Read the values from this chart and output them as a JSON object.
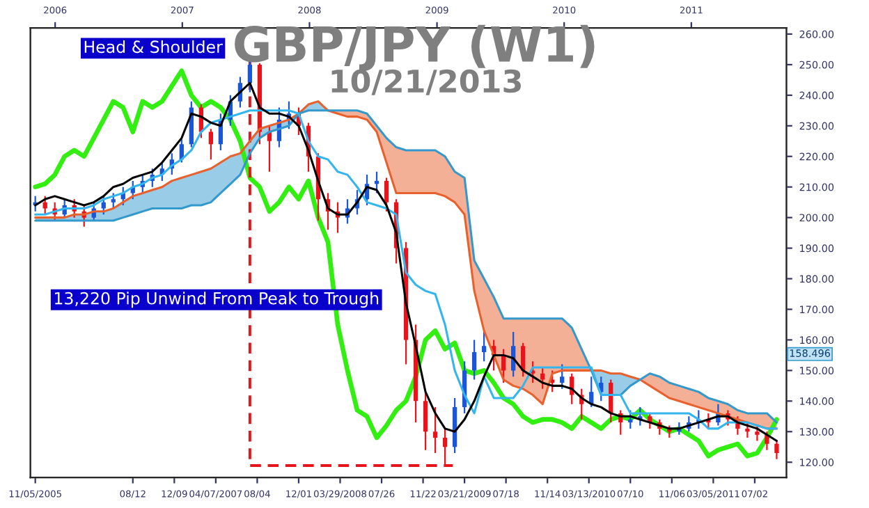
{
  "chart_data": {
    "type": "candlestick",
    "title": "GBP/JPY (W1)",
    "subtitle": "10/21/2013",
    "x": [
      "2005-11-05",
      "2005-12-03",
      "2005-12-31",
      "2006-01-28",
      "2006-02-25",
      "2006-03-25",
      "2006-04-22",
      "2006-05-20",
      "2006-06-17",
      "2006-07-15",
      "2006-08-12",
      "2006-09-09",
      "2006-10-07",
      "2006-11-04",
      "2006-12-02",
      "2006-12-30",
      "2007-01-27",
      "2007-02-24",
      "2007-03-24",
      "2007-04-21",
      "2007-05-19",
      "2007-06-16",
      "2007-07-14",
      "2007-08-11",
      "2007-09-08",
      "2007-10-06",
      "2007-11-03",
      "2007-12-01",
      "2007-12-29",
      "2008-01-26",
      "2008-02-23",
      "2008-03-22",
      "2008-04-19",
      "2008-05-17",
      "2008-06-14",
      "2008-07-12",
      "2008-08-09",
      "2008-09-06",
      "2008-10-04",
      "2008-11-01",
      "2008-11-29",
      "2008-12-27",
      "2009-01-24",
      "2009-02-21",
      "2009-03-21",
      "2009-04-18",
      "2009-05-16",
      "2009-06-13",
      "2009-07-11",
      "2009-08-08",
      "2009-09-05",
      "2009-10-03",
      "2009-10-31",
      "2009-11-28",
      "2009-12-26",
      "2010-01-23",
      "2010-02-20",
      "2010-03-20",
      "2010-04-17",
      "2010-05-15",
      "2010-06-12",
      "2010-07-10",
      "2010-08-07",
      "2010-09-04",
      "2010-10-02",
      "2010-10-30",
      "2010-11-27",
      "2010-12-25",
      "2011-01-22",
      "2011-02-19",
      "2011-03-19",
      "2011-04-16",
      "2011-05-14",
      "2011-06-11",
      "2011-07-09",
      "2011-08-06",
      "2011-09-03"
    ],
    "ohlc": [
      [
        204,
        207,
        202,
        205
      ],
      [
        205,
        207,
        201,
        203
      ],
      [
        203,
        205,
        199,
        201
      ],
      [
        201,
        206,
        200,
        204
      ],
      [
        204,
        206,
        200,
        202
      ],
      [
        202,
        204,
        197,
        200
      ],
      [
        200,
        205,
        199,
        203
      ],
      [
        203,
        207,
        201,
        205
      ],
      [
        205,
        208,
        203,
        206
      ],
      [
        206,
        210,
        204,
        208
      ],
      [
        208,
        212,
        206,
        210
      ],
      [
        210,
        214,
        208,
        212
      ],
      [
        212,
        216,
        210,
        214
      ],
      [
        214,
        218,
        212,
        216
      ],
      [
        216,
        221,
        214,
        219
      ],
      [
        219,
        226,
        218,
        224
      ],
      [
        224,
        238,
        223,
        236
      ],
      [
        236,
        237,
        226,
        228
      ],
      [
        228,
        229,
        219,
        224
      ],
      [
        224,
        234,
        222,
        232
      ],
      [
        232,
        240,
        230,
        238
      ],
      [
        238,
        246,
        236,
        244
      ],
      [
        244,
        251.1,
        241,
        250
      ],
      [
        250,
        250.5,
        224,
        228
      ],
      [
        228,
        230,
        215,
        225
      ],
      [
        225,
        236,
        223,
        232
      ],
      [
        232,
        238,
        229,
        234
      ],
      [
        234,
        236,
        227,
        230
      ],
      [
        230,
        231,
        215,
        220
      ],
      [
        220,
        221,
        199,
        206
      ],
      [
        206,
        208,
        196,
        202
      ],
      [
        202,
        205,
        195,
        200
      ],
      [
        200,
        206,
        198,
        203
      ],
      [
        203,
        209,
        201,
        206
      ],
      [
        206,
        214,
        204,
        211
      ],
      [
        211,
        215,
        208,
        212
      ],
      [
        212,
        213,
        202,
        205
      ],
      [
        205,
        206,
        185,
        190
      ],
      [
        190,
        192,
        152,
        160
      ],
      [
        160,
        165,
        133,
        140
      ],
      [
        140,
        143,
        124,
        130
      ],
      [
        130,
        138,
        123,
        128
      ],
      [
        128,
        131,
        118.9,
        125
      ],
      [
        125,
        141,
        123,
        138
      ],
      [
        138,
        153,
        136,
        150
      ],
      [
        150,
        160,
        147,
        156
      ],
      [
        156,
        163,
        153,
        158
      ],
      [
        158,
        160,
        150,
        155
      ],
      [
        155,
        157,
        146,
        150
      ],
      [
        150,
        162.6,
        148,
        158
      ],
      [
        158,
        159,
        148,
        150
      ],
      [
        150,
        153,
        146,
        149
      ],
      [
        149,
        151,
        144,
        147
      ],
      [
        147,
        150,
        143,
        146
      ],
      [
        146,
        152,
        144,
        148
      ],
      [
        148,
        149,
        139,
        142
      ],
      [
        142,
        144,
        134,
        139
      ],
      [
        139,
        148,
        138,
        143
      ],
      [
        143,
        148,
        140,
        146
      ],
      [
        146,
        147,
        133,
        136
      ],
      [
        136,
        137,
        129,
        133
      ],
      [
        133,
        137,
        131,
        134
      ],
      [
        134,
        138,
        132,
        135
      ],
      [
        135,
        136,
        131,
        133
      ],
      [
        133,
        134,
        129,
        131
      ],
      [
        131,
        132,
        128,
        130
      ],
      [
        130,
        133,
        129,
        131
      ],
      [
        131,
        135,
        130,
        133
      ],
      [
        133,
        137,
        131,
        134
      ],
      [
        134,
        136,
        131,
        133
      ],
      [
        133,
        139,
        132,
        136
      ],
      [
        136,
        137,
        132,
        134
      ],
      [
        134,
        135,
        129,
        131
      ],
      [
        131,
        133,
        128,
        130
      ],
      [
        130,
        132,
        127,
        129
      ],
      [
        129,
        130,
        124,
        126
      ],
      [
        126,
        127,
        121,
        123
      ]
    ],
    "colors": [
      "#1a56d6",
      "#e8141c",
      "#e8141c",
      "#1a56d6",
      "#e8141c",
      "#e8141c",
      "#1a56d6",
      "#1a56d6",
      "#1a56d6",
      "#1a56d6",
      "#1a56d6",
      "#1a56d6",
      "#1a56d6",
      "#1a56d6",
      "#1a56d6",
      "#1a56d6",
      "#1a56d6",
      "#e8141c",
      "#e8141c",
      "#1a56d6",
      "#1a56d6",
      "#1a56d6",
      "#1a56d6",
      "#e8141c",
      "#e8141c",
      "#1a56d6",
      "#1a56d6",
      "#e8141c",
      "#e8141c",
      "#e8141c",
      "#e8141c",
      "#e8141c",
      "#1a56d6",
      "#1a56d6",
      "#1a56d6",
      "#1a56d6",
      "#e8141c",
      "#e8141c",
      "#e8141c",
      "#e8141c",
      "#e8141c",
      "#e8141c",
      "#e8141c",
      "#1a56d6",
      "#1a56d6",
      "#1a56d6",
      "#1a56d6",
      "#e8141c",
      "#e8141c",
      "#1a56d6",
      "#e8141c",
      "#e8141c",
      "#e8141c",
      "#e8141c",
      "#1a56d6",
      "#e8141c",
      "#e8141c",
      "#1a56d6",
      "#1a56d6",
      "#e8141c",
      "#e8141c",
      "#1a56d6",
      "#1a56d6",
      "#e8141c",
      "#e8141c",
      "#e8141c",
      "#1a56d6",
      "#1a56d6",
      "#1a56d6",
      "#e8141c",
      "#1a56d6",
      "#e8141c",
      "#e8141c",
      "#e8141c",
      "#e8141c",
      "#e8141c",
      "#e8141c"
    ],
    "series": [
      {
        "type": "line",
        "color": "#e8602c",
        "values": [
          200,
          200,
          200,
          200,
          201,
          201,
          202,
          202,
          203,
          205,
          207,
          208,
          209,
          210,
          212,
          213,
          214,
          215,
          216,
          218,
          220,
          221,
          225,
          229,
          230,
          231,
          232,
          234,
          237,
          238,
          235,
          234,
          233,
          233,
          232,
          228,
          218,
          208,
          208,
          208,
          208,
          208,
          207,
          205,
          201,
          176,
          163,
          155,
          147,
          145,
          144,
          142,
          139,
          149,
          150,
          150,
          150,
          150,
          150,
          149,
          149,
          148,
          147,
          145,
          143,
          141,
          140,
          139,
          138,
          137,
          136,
          135,
          134,
          133,
          132,
          131,
          131
        ],
        "lower": [
          null,
          null,
          null,
          null,
          null,
          null,
          null,
          null,
          null,
          null,
          null,
          null,
          null,
          null,
          null,
          null,
          null,
          null,
          null,
          null,
          null,
          null,
          null,
          null,
          null,
          null,
          null,
          null,
          null,
          null,
          235,
          234,
          233,
          233,
          232,
          228,
          218,
          208,
          208,
          208,
          208,
          208,
          207,
          205,
          201,
          176,
          163,
          155,
          147,
          145,
          144,
          142,
          139,
          149,
          150,
          150,
          150,
          150,
          null,
          null,
          null,
          null,
          147,
          145,
          143,
          141,
          140,
          139,
          138,
          137,
          136,
          135,
          134,
          133,
          132,
          131,
          131
        ],
        "upper": [
          null,
          null,
          null,
          null,
          null,
          null,
          null,
          null,
          null,
          null,
          null,
          null,
          null,
          null,
          null,
          null,
          null,
          null,
          null,
          null,
          null,
          null,
          null,
          null,
          null,
          null,
          null,
          null,
          null,
          null,
          235,
          235,
          235,
          235,
          234,
          230,
          226,
          223,
          222,
          222,
          222,
          222,
          220,
          215,
          213,
          186,
          180,
          174,
          167,
          167,
          167,
          167,
          167,
          167,
          167,
          164,
          157,
          150,
          null,
          null,
          null,
          null,
          147,
          149,
          148,
          146,
          145,
          144,
          143,
          141,
          140,
          139,
          137,
          136,
          136,
          136,
          133
        ]
      },
      {
        "type": "line",
        "color": "#3399cc",
        "values": [
          199,
          199,
          199,
          199,
          199,
          199,
          199,
          199,
          199,
          200,
          201,
          202,
          203,
          203,
          203,
          203,
          204,
          204,
          205,
          208,
          211,
          214,
          221,
          226,
          228,
          229,
          230,
          234,
          235,
          235,
          235,
          235,
          235,
          235,
          234,
          230,
          226,
          223,
          222,
          222,
          222,
          222,
          220,
          215,
          213,
          186,
          180,
          174,
          167,
          167,
          167,
          167,
          167,
          167,
          167,
          164,
          157,
          150,
          142,
          142,
          142,
          145,
          147,
          149,
          148,
          146,
          145,
          144,
          143,
          141,
          140,
          139,
          137,
          136,
          136,
          136,
          133
        ],
        "lower": [
          199,
          199,
          199,
          199,
          199,
          199,
          199,
          199,
          199,
          200,
          201,
          202,
          203,
          203,
          203,
          203,
          204,
          204,
          205,
          208,
          211,
          214,
          221,
          226,
          228,
          229,
          230,
          234,
          235,
          235,
          235,
          null,
          null,
          null,
          null,
          null,
          null,
          null,
          null,
          null,
          null,
          null,
          null,
          null,
          null,
          null,
          null,
          null,
          null,
          null,
          null,
          null,
          null,
          null,
          null,
          null,
          null,
          150,
          142,
          142,
          142,
          145,
          147,
          null,
          null,
          null,
          null,
          null,
          null,
          null,
          null,
          null,
          null,
          null,
          null,
          null,
          null
        ],
        "upper": [
          200,
          200,
          200,
          200,
          201,
          201,
          202,
          202,
          203,
          205,
          207,
          208,
          209,
          210,
          212,
          213,
          214,
          215,
          216,
          218,
          220,
          221,
          225,
          229,
          230,
          231,
          232,
          234,
          237,
          238,
          235,
          null,
          null,
          null,
          null,
          null,
          null,
          null,
          null,
          null,
          null,
          null,
          null,
          null,
          null,
          null,
          null,
          null,
          null,
          null,
          null,
          null,
          null,
          null,
          null,
          null,
          null,
          150,
          150,
          149,
          149,
          148,
          147,
          null,
          null,
          null,
          null,
          null,
          null,
          null,
          null,
          null,
          null,
          null,
          null,
          null,
          null
        ]
      },
      {
        "type": "line",
        "color": "#33b5ee",
        "values": [
          201,
          201,
          202,
          203,
          203,
          203,
          204,
          206,
          207,
          208,
          210,
          211,
          213,
          214,
          217,
          219,
          222,
          228,
          231,
          232,
          233,
          234,
          235,
          235,
          235,
          235,
          235,
          234,
          225,
          220,
          219,
          215,
          214,
          210,
          205,
          204,
          203,
          201,
          182,
          178,
          176,
          175,
          165,
          150,
          142,
          136,
          148,
          141,
          141,
          141,
          145,
          151,
          151,
          151,
          151,
          151,
          151,
          151,
          142,
          142,
          142,
          136,
          136,
          136,
          136,
          136,
          136,
          136,
          134,
          131,
          131,
          133,
          133,
          133,
          132,
          131,
          131
        ]
      },
      {
        "type": "line",
        "color": "#000000",
        "values": [
          204,
          206,
          207,
          206,
          205,
          204,
          205,
          207,
          210,
          211,
          213,
          214,
          215,
          218,
          222,
          226,
          234,
          233,
          231,
          230,
          238,
          241,
          244,
          236,
          234,
          234,
          233,
          230,
          222,
          212,
          203,
          201,
          201,
          205,
          210,
          209,
          204,
          195,
          172,
          158,
          143,
          136,
          131,
          130,
          134,
          140,
          148,
          155,
          155,
          154,
          150,
          148,
          146,
          145,
          145,
          144,
          141,
          139,
          138,
          136,
          135,
          135,
          134,
          133,
          132,
          131,
          131,
          132,
          133,
          134,
          135,
          135,
          133,
          132,
          131,
          129,
          127
        ]
      },
      {
        "type": "line",
        "color": "#33ee11",
        "values": [
          210,
          211,
          214,
          220,
          222,
          220,
          226,
          232,
          238,
          236,
          228,
          238,
          236,
          238,
          243,
          248,
          240,
          236,
          238,
          236,
          232,
          225,
          213,
          210,
          202,
          205,
          210,
          206,
          212,
          200,
          192,
          165,
          150,
          137,
          135,
          128,
          132,
          137,
          140,
          148,
          160,
          163,
          157,
          159,
          150,
          149,
          150,
          146,
          141,
          139,
          135,
          133,
          134,
          134,
          133,
          131,
          135,
          133,
          131,
          134,
          135,
          134,
          137,
          134,
          132,
          130,
          131,
          129,
          127,
          122,
          124,
          125,
          126,
          122,
          123,
          128,
          134
        ]
      }
    ],
    "xlim": [
      "2005-10-22",
      "2011-10-01"
    ],
    "xticks": [
      {
        "value": "2005-11-05",
        "label": "11/05/2005"
      },
      {
        "value": "2006-08-12",
        "label": "08/12"
      },
      {
        "value": "2006-12-09",
        "label": "12/09"
      },
      {
        "value": "2007-04-07",
        "label": "04/07/2007"
      },
      {
        "value": "2007-08-04",
        "label": "08/04"
      },
      {
        "value": "2007-12-01",
        "label": "12/01"
      },
      {
        "value": "2008-03-29",
        "label": "03/29/2008"
      },
      {
        "value": "2008-07-26",
        "label": "07/26"
      },
      {
        "value": "2008-11-22",
        "label": "11/22"
      },
      {
        "value": "2009-03-21",
        "label": "03/21/2009"
      },
      {
        "value": "2009-07-18",
        "label": "07/18"
      },
      {
        "value": "2009-11-14",
        "label": "11/14"
      },
      {
        "value": "2010-03-13",
        "label": "03/13/2010"
      },
      {
        "value": "2010-07-10",
        "label": "07/10"
      },
      {
        "value": "2010-11-06",
        "label": "11/06"
      },
      {
        "value": "2011-03-05",
        "label": "03/05/2011"
      },
      {
        "value": "2011-07-02",
        "label": "07/02"
      }
    ],
    "x2lim": [
      "2005-10-22",
      "2011-10-01"
    ],
    "x2ticks": [
      {
        "value": "2006-01-01",
        "label": "2006"
      },
      {
        "value": "2007-01-01",
        "label": "2007"
      },
      {
        "value": "2008-01-01",
        "label": "2008"
      },
      {
        "value": "2009-01-01",
        "label": "2009"
      },
      {
        "value": "2010-01-01",
        "label": "2010"
      },
      {
        "value": "2011-01-01",
        "label": "2011"
      }
    ],
    "ylim": [
      115,
      262
    ],
    "yticks": [
      {
        "value": 120,
        "label": "120.00"
      },
      {
        "value": 130,
        "label": "130.00"
      },
      {
        "value": 140,
        "label": "140.00"
      },
      {
        "value": 150,
        "label": "150.00"
      },
      {
        "value": 160,
        "label": "160.00"
      },
      {
        "value": 170,
        "label": "170.00"
      },
      {
        "value": 180,
        "label": "180.00"
      },
      {
        "value": 190,
        "label": "190.00"
      },
      {
        "value": 200,
        "label": "200.00"
      },
      {
        "value": 210,
        "label": "210.00"
      },
      {
        "value": 220,
        "label": "220.00"
      },
      {
        "value": 230,
        "label": "230.00"
      },
      {
        "value": 240,
        "label": "240.00"
      },
      {
        "value": 250,
        "label": "250.00"
      },
      {
        "value": 260,
        "label": "260.00"
      }
    ],
    "annotations": [
      "Head & Shoulder",
      "13,220 Pip Unwind From Peak to Trough",
      "158.496"
    ]
  }
}
